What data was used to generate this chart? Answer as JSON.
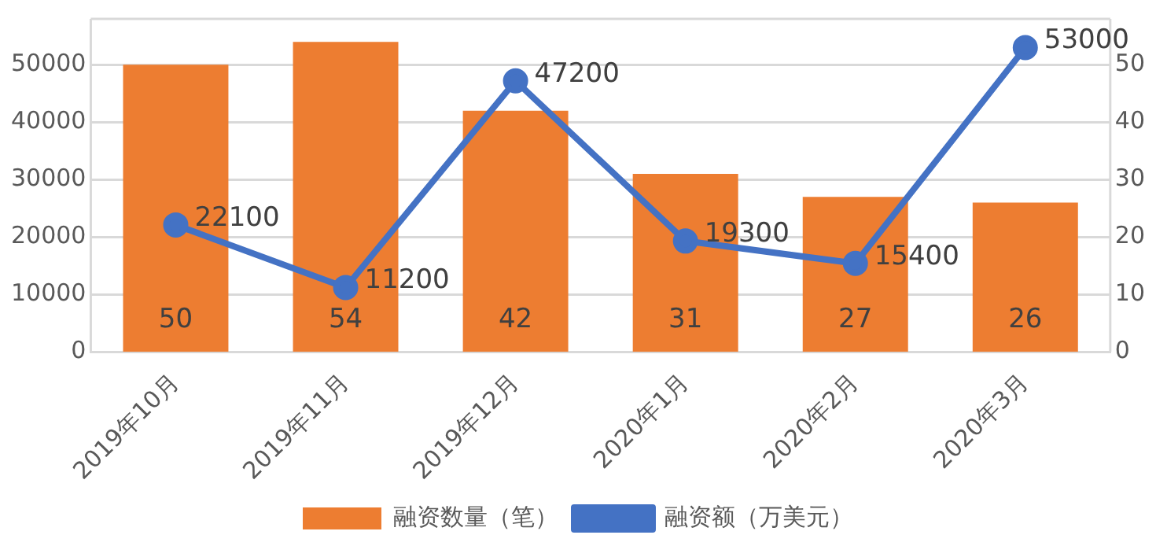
{
  "chart_data": {
    "type": "bar",
    "categories": [
      "2019年10月",
      "2019年11月",
      "2019年12月",
      "2020年1月",
      "2020年2月",
      "2020年3月"
    ],
    "series": [
      {
        "name": "融资数量（笔）",
        "axis": "y2",
        "color": "#ed7d31",
        "values": [
          50,
          54,
          42,
          31,
          27,
          26
        ]
      },
      {
        "name": "融资额（万美元）",
        "type": "line",
        "color": "#4472c4",
        "marker": "circle",
        "values": [
          22100,
          11200,
          47200,
          19300,
          15400,
          53000
        ]
      }
    ],
    "ylim": [
      0,
      58000
    ],
    "yticks": [
      0,
      10000,
      20000,
      30000,
      40000,
      50000
    ],
    "y2lim": [
      0,
      58
    ],
    "y2ticks": [
      0,
      10,
      20,
      30,
      40,
      50
    ],
    "grid": "y",
    "legend": "bottom",
    "data_labels": true
  }
}
